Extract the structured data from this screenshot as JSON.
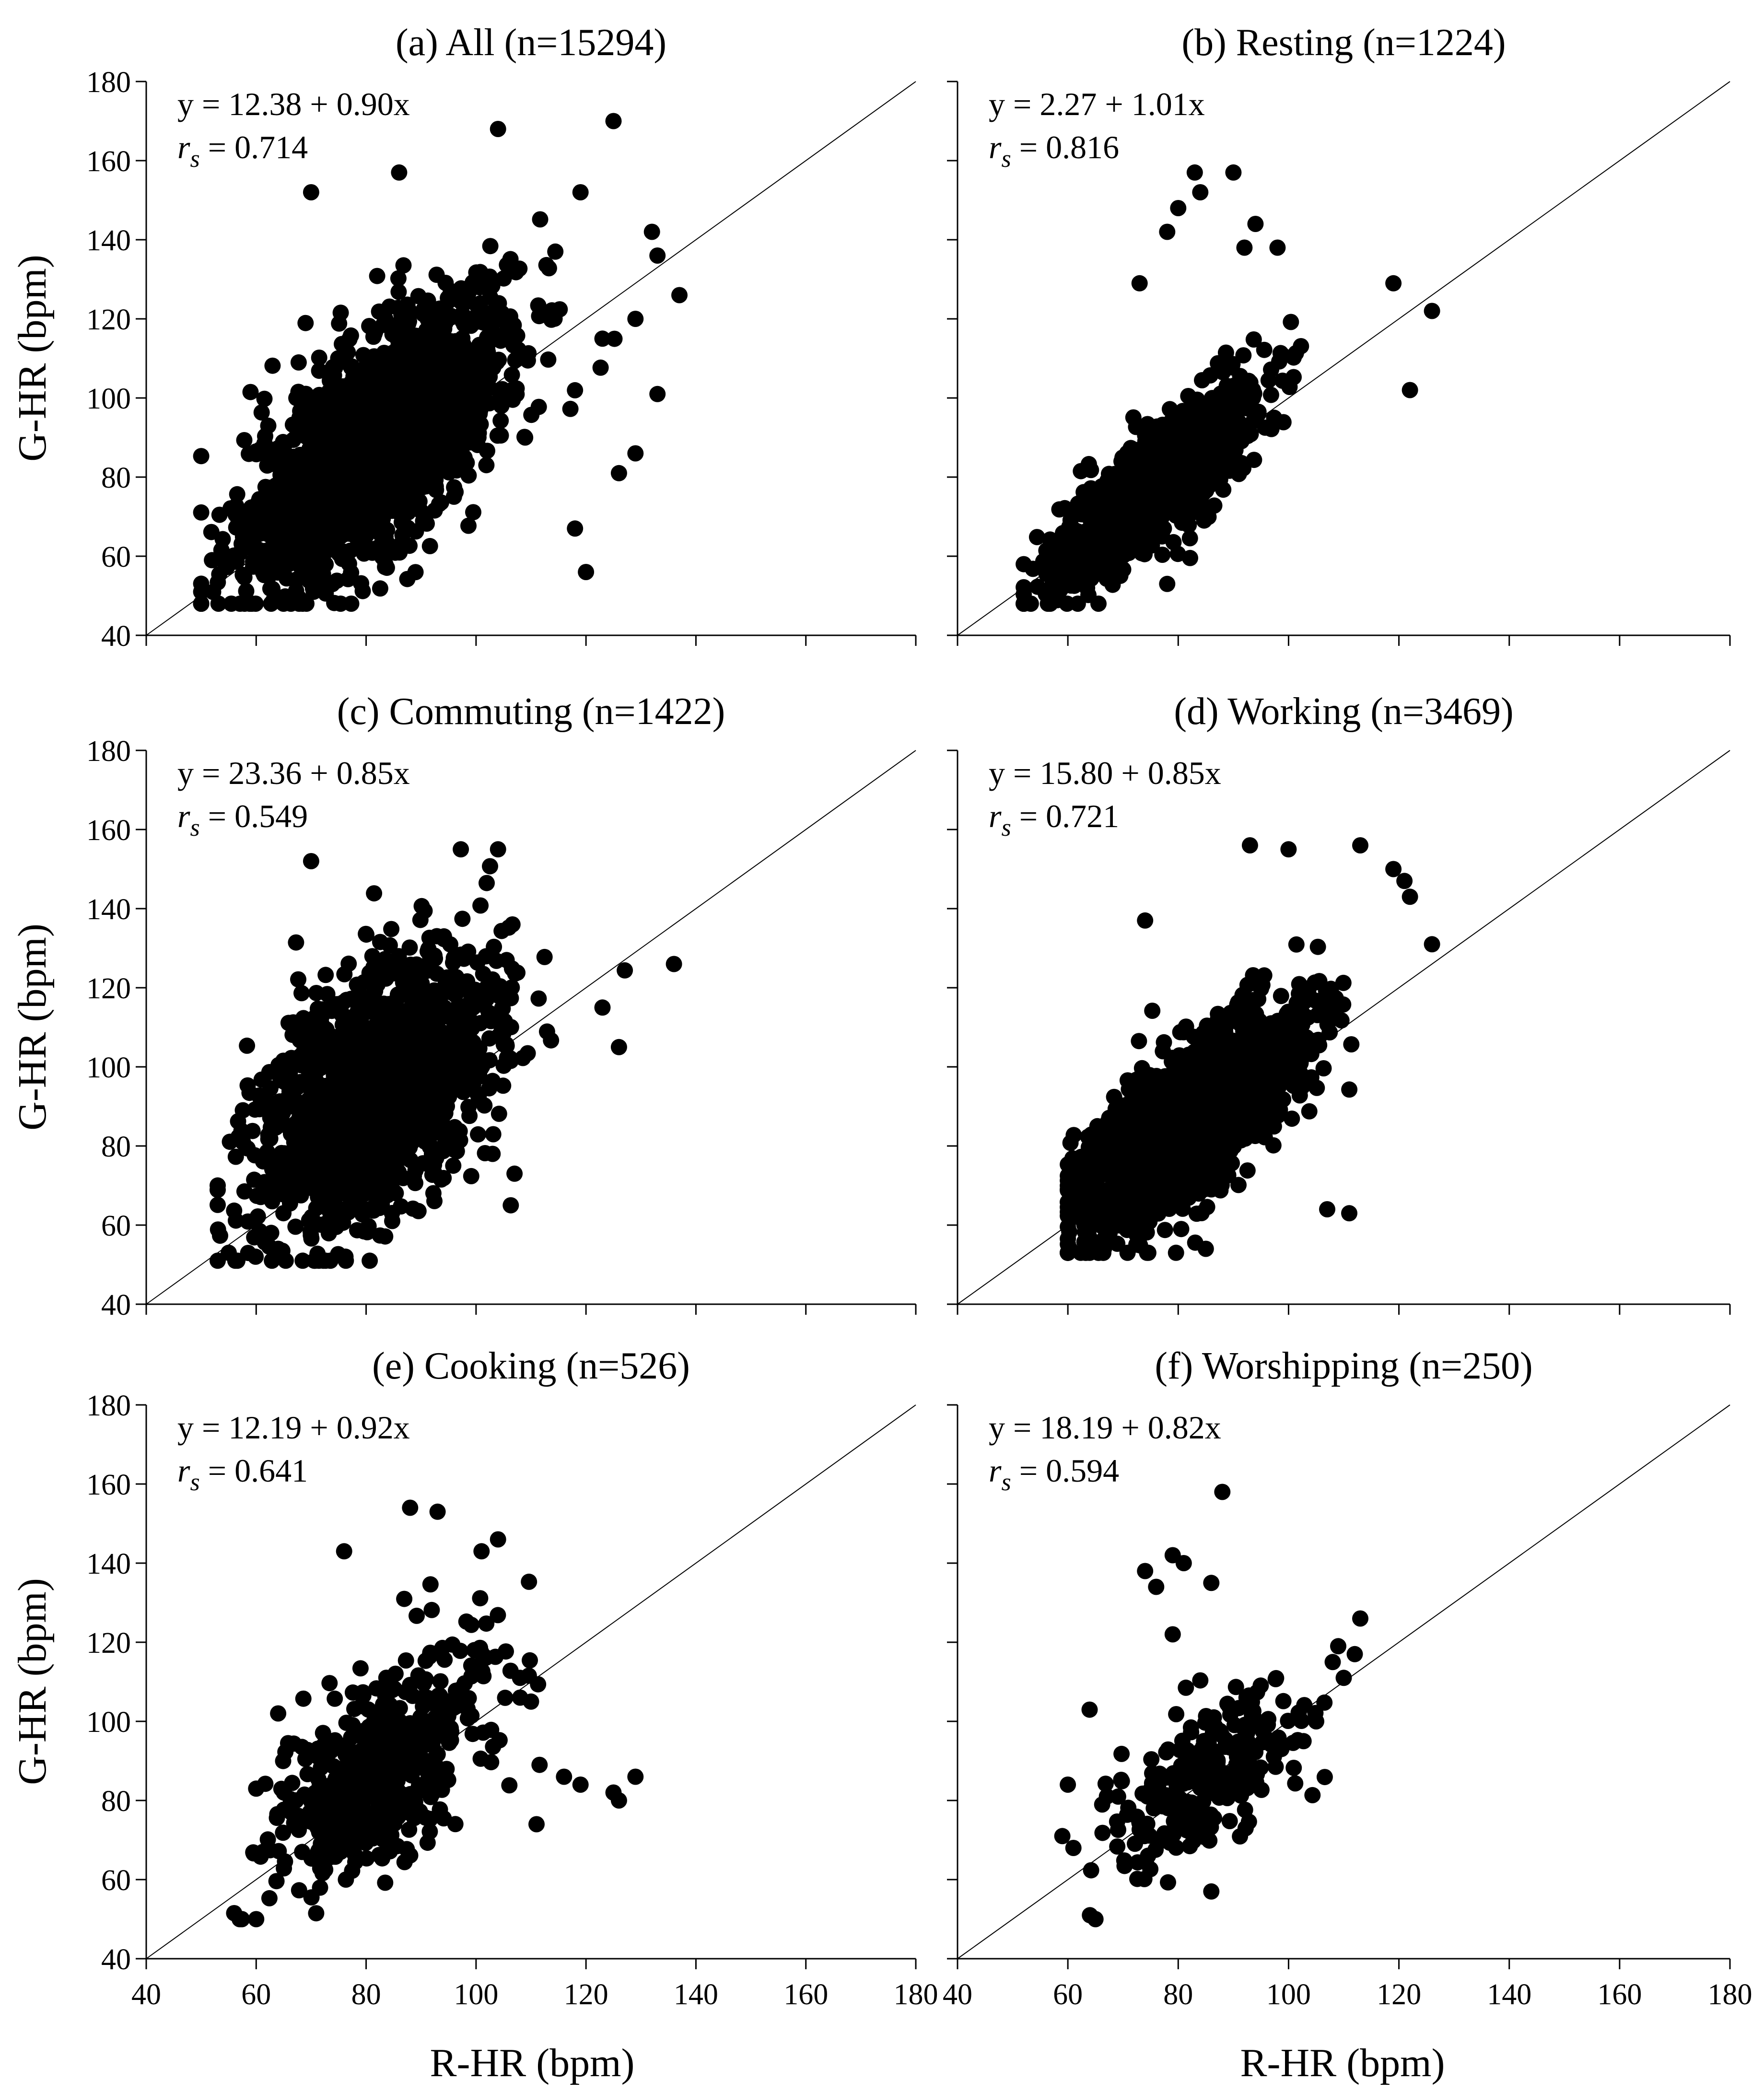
{
  "figure": {
    "y_axis_label": "G-HR (bpm)",
    "x_axis_label": "R-HR (bpm)",
    "x_ticks": [
      "40",
      "60",
      "80",
      "100",
      "120",
      "140",
      "160",
      "180"
    ],
    "y_ticks": [
      "40",
      "60",
      "80",
      "100",
      "120",
      "140",
      "160",
      "180"
    ]
  },
  "chart_data": [
    {
      "id": "a",
      "type": "scatter",
      "title": "(a) All (n=15294)",
      "equation": "y = 12.38 + 0.90x",
      "rs_value": "= 0.714",
      "n": 15294,
      "xlabel": "R-HR (bpm)",
      "ylabel": "G-HR (bpm)",
      "xlim": [
        40,
        180
      ],
      "ylim": [
        40,
        180
      ],
      "reference_line": [
        [
          40,
          40
        ],
        [
          180,
          180
        ]
      ],
      "intercept": 12.38,
      "slope": 0.9,
      "point_cloud": {
        "center": [
          82,
          89
        ],
        "spread": [
          12,
          18
        ],
        "correlation": 0.68,
        "x_range": [
          50,
          137
        ],
        "y_range": [
          48,
          170
        ]
      },
      "outliers": [
        [
          125,
          170
        ],
        [
          104,
          168
        ],
        [
          137,
          126
        ],
        [
          133,
          136
        ],
        [
          132,
          142
        ],
        [
          133,
          101
        ],
        [
          120,
          56
        ],
        [
          129,
          86
        ],
        [
          126,
          81
        ],
        [
          118,
          67
        ],
        [
          123,
          115
        ],
        [
          119,
          152
        ],
        [
          129,
          120
        ],
        [
          86,
          157
        ],
        [
          70,
          152
        ]
      ]
    },
    {
      "id": "b",
      "type": "scatter",
      "title": "(b) Resting (n=1224)",
      "equation": "y = 2.27 + 1.01x",
      "rs_value": "= 0.816",
      "n": 1224,
      "xlabel": "R-HR (bpm)",
      "ylabel": "G-HR (bpm)",
      "xlim": [
        40,
        180
      ],
      "ylim": [
        40,
        180
      ],
      "reference_line": [
        [
          40,
          40
        ],
        [
          180,
          180
        ]
      ],
      "intercept": 2.27,
      "slope": 1.01,
      "point_cloud": {
        "center": [
          76,
          78
        ],
        "spread": [
          9,
          12
        ],
        "correlation": 0.82,
        "x_range": [
          52,
          126
        ],
        "y_range": [
          48,
          157
        ]
      },
      "outliers": [
        [
          83,
          157
        ],
        [
          90,
          157
        ],
        [
          84,
          152
        ],
        [
          94,
          144
        ],
        [
          78,
          142
        ],
        [
          92,
          138
        ],
        [
          98,
          138
        ],
        [
          126,
          122
        ],
        [
          122,
          102
        ],
        [
          119,
          129
        ],
        [
          78,
          53
        ],
        [
          80,
          148
        ],
        [
          73,
          129
        ]
      ]
    },
    {
      "id": "c",
      "type": "scatter",
      "title": "(c) Commuting (n=1422)",
      "equation": "y = 23.36 + 0.85x",
      "rs_value": "= 0.549",
      "n": 1422,
      "xlabel": "R-HR (bpm)",
      "ylabel": "G-HR (bpm)",
      "xlim": [
        40,
        180
      ],
      "ylim": [
        40,
        180
      ],
      "reference_line": [
        [
          40,
          40
        ],
        [
          180,
          180
        ]
      ],
      "intercept": 23.36,
      "slope": 0.85,
      "point_cloud": {
        "center": [
          82,
          94
        ],
        "spread": [
          11,
          18
        ],
        "correlation": 0.5,
        "x_range": [
          53,
          137
        ],
        "y_range": [
          51,
          155
        ]
      },
      "outliers": [
        [
          136,
          126
        ],
        [
          126,
          105
        ],
        [
          123,
          115
        ],
        [
          104,
          155
        ],
        [
          70,
          152
        ],
        [
          107,
          73
        ],
        [
          103,
          78
        ],
        [
          53,
          51
        ],
        [
          55,
          53
        ],
        [
          64,
          54
        ]
      ]
    },
    {
      "id": "d",
      "type": "scatter",
      "title": "(d) Working (n=3469)",
      "equation": "y = 15.80 + 0.85x",
      "rs_value": "= 0.721",
      "n": 3469,
      "xlabel": "R-HR (bpm)",
      "ylabel": "G-HR (bpm)",
      "xlim": [
        40,
        180
      ],
      "ylim": [
        40,
        180
      ],
      "reference_line": [
        [
          40,
          40
        ],
        [
          180,
          180
        ]
      ],
      "intercept": 15.8,
      "slope": 0.85,
      "point_cloud": {
        "center": [
          82,
          86
        ],
        "spread": [
          10,
          14
        ],
        "correlation": 0.74,
        "x_range": [
          60,
          126
        ],
        "y_range": [
          53,
          156
        ]
      },
      "outliers": [
        [
          126,
          131
        ],
        [
          119,
          150
        ],
        [
          121,
          147
        ],
        [
          122,
          143
        ],
        [
          113,
          156
        ],
        [
          93,
          156
        ],
        [
          107,
          64
        ],
        [
          111,
          63
        ],
        [
          74,
          137
        ],
        [
          85,
          54
        ],
        [
          100,
          155
        ]
      ]
    },
    {
      "id": "e",
      "type": "scatter",
      "title": "(e) Cooking (n=526)",
      "equation": "y = 12.19 + 0.92x",
      "rs_value": "= 0.641",
      "n": 526,
      "xlabel": "R-HR (bpm)",
      "ylabel": "G-HR (bpm)",
      "xlim": [
        40,
        180
      ],
      "ylim": [
        40,
        180
      ],
      "reference_line": [
        [
          40,
          40
        ],
        [
          180,
          180
        ]
      ],
      "intercept": 12.19,
      "slope": 0.92,
      "point_cloud": {
        "center": [
          82,
          88
        ],
        "spread": [
          10,
          15
        ],
        "correlation": 0.6,
        "x_range": [
          56,
          129
        ],
        "y_range": [
          50,
          154
        ]
      },
      "outliers": [
        [
          129,
          86
        ],
        [
          126,
          80
        ],
        [
          125,
          82
        ],
        [
          119,
          84
        ],
        [
          116,
          86
        ],
        [
          111,
          74
        ],
        [
          110,
          105
        ],
        [
          108,
          111
        ],
        [
          104,
          146
        ],
        [
          101,
          143
        ],
        [
          93,
          153
        ],
        [
          88,
          154
        ],
        [
          76,
          143
        ],
        [
          57,
          50
        ],
        [
          60,
          50
        ],
        [
          60,
          83
        ],
        [
          64,
          102
        ]
      ]
    },
    {
      "id": "f",
      "type": "scatter",
      "title": "(f) Worshipping (n=250)",
      "equation": "y = 18.19 + 0.82x",
      "rs_value": "= 0.594",
      "n": 250,
      "xlabel": "R-HR (bpm)",
      "ylabel": "G-HR (bpm)",
      "xlim": [
        40,
        180
      ],
      "ylim": [
        40,
        180
      ],
      "reference_line": [
        [
          40,
          40
        ],
        [
          180,
          180
        ]
      ],
      "intercept": 18.19,
      "slope": 0.82,
      "point_cloud": {
        "center": [
          84,
          86
        ],
        "spread": [
          9,
          11
        ],
        "correlation": 0.6,
        "x_range": [
          59,
          113
        ],
        "y_range": [
          50,
          158
        ]
      },
      "outliers": [
        [
          88,
          158
        ],
        [
          79,
          142
        ],
        [
          81,
          140
        ],
        [
          74,
          138
        ],
        [
          76,
          134
        ],
        [
          86,
          135
        ],
        [
          113,
          126
        ],
        [
          109,
          119
        ],
        [
          112,
          117
        ],
        [
          110,
          111
        ],
        [
          108,
          115
        ],
        [
          105,
          100
        ],
        [
          86,
          57
        ],
        [
          64,
          51
        ],
        [
          65,
          50
        ],
        [
          60,
          84
        ],
        [
          59,
          71
        ],
        [
          61,
          68
        ],
        [
          79,
          122
        ]
      ]
    }
  ]
}
